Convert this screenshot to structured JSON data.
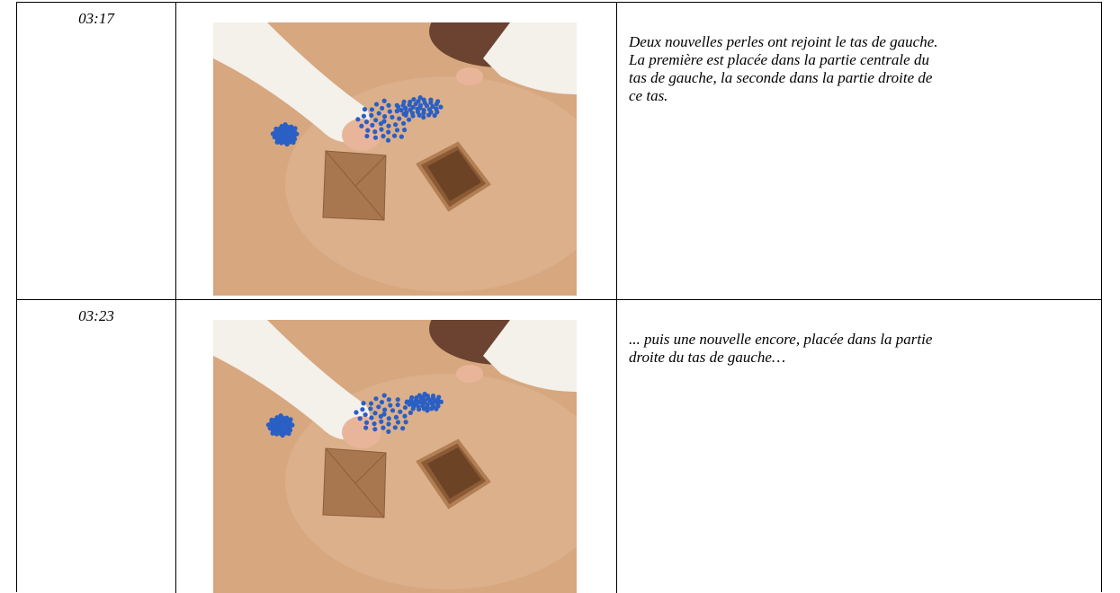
{
  "table": {
    "rows": [
      {
        "time": "03:17",
        "lines": [
          "Deux nouvelles perles ont rejoint le tas de gauche.",
          "La première est placée dans la partie centrale du",
          "tas de gauche, la seconde dans la partie droite de",
          "ce tas."
        ]
      },
      {
        "time": "03:23",
        "lines": [
          "... puis une nouvelle encore, placée dans la partie",
          "droite du tas de gauche…"
        ]
      }
    ]
  }
}
